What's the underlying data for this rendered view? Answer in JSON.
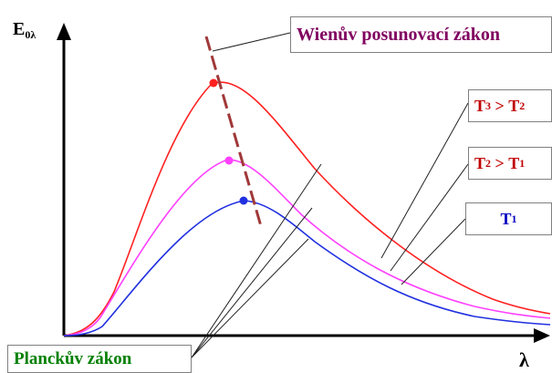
{
  "axes": {
    "y_label_main": "E",
    "y_label_sub": "0λ",
    "x_label": "λ"
  },
  "labels": {
    "wien": "Wienův posunovací zákon",
    "planck": "Planckův zákon",
    "t3": {
      "a": "T",
      "a_sub": "3",
      "op": " > ",
      "b": "T",
      "b_sub": "2"
    },
    "t2": {
      "a": "T",
      "a_sub": "2",
      "op": " > ",
      "b": "T",
      "b_sub": "1"
    },
    "t1": {
      "a": "T",
      "a_sub": "1"
    }
  },
  "colors": {
    "t3_curve": "#ff2020",
    "t2_curve": "#ff40ff",
    "t1_curve": "#2030e0",
    "wien_line": "#a03838",
    "wien_text": "#800060",
    "planck_text": "#008000",
    "t_text": "#c00000",
    "t1_text": "#0000c0",
    "axis": "#000000"
  }
}
